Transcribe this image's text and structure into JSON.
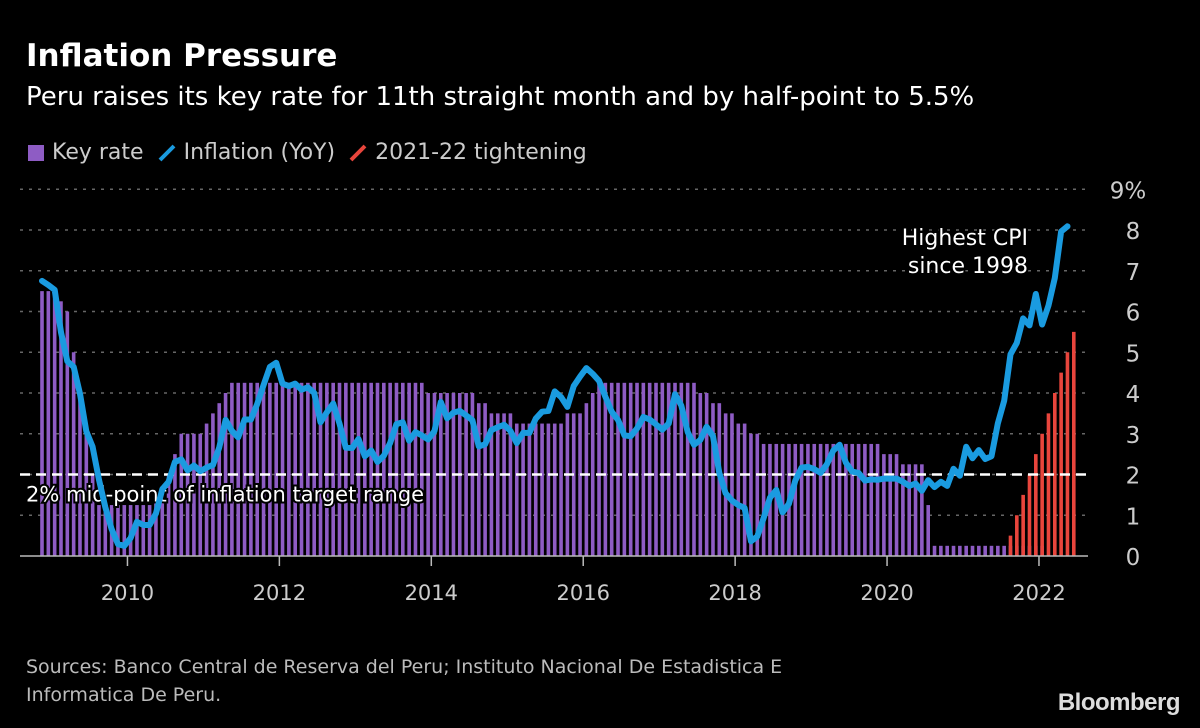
{
  "header": {
    "title": "Inflation Pressure",
    "subtitle": "Peru raises its key rate for 11th straight month and by half-point to 5.5%"
  },
  "footer": {
    "sources_line1": "Sources: Banco Central de Reserva del Peru; Instituto Nacional De Estadistica E",
    "sources_line2": "Informatica De Peru.",
    "logo": "Bloomberg"
  },
  "colors": {
    "key_rate": "#8e5cc4",
    "inflation": "#1a9be0",
    "tightening": "#e8453c",
    "background": "#000000"
  },
  "chart_data": {
    "type": "bar+line",
    "title": "Inflation Pressure",
    "legend": {
      "placement": "top-left",
      "entries": [
        "Key rate",
        "Inflation (YoY)",
        "2021-22 tightening"
      ]
    },
    "x_start": "2008-11",
    "x_frequency": "monthly",
    "x_ticks": [
      "2010",
      "2012",
      "2014",
      "2016",
      "2018",
      "2020",
      "2022"
    ],
    "y_ticks": [
      "0",
      "1",
      "2",
      "3",
      "4",
      "5",
      "6",
      "7",
      "8",
      "9%"
    ],
    "ylim": [
      0,
      9
    ],
    "grid": true,
    "annotations": {
      "target_line_value": 2,
      "target_label": "2% mid-point of inflation target range",
      "cpi_label_1": "Highest CPI",
      "cpi_label_2": "since 1998"
    },
    "series": [
      {
        "name": "Key rate",
        "type": "bar",
        "values": [
          6.5,
          6.5,
          6.5,
          6.25,
          6.0,
          5.0,
          4.0,
          3.0,
          2.0,
          1.25,
          1.25,
          1.25,
          1.25,
          1.25,
          1.25,
          1.25,
          1.25,
          1.25,
          1.5,
          1.75,
          2.0,
          2.5,
          3.0,
          3.0,
          3.0,
          3.0,
          3.25,
          3.5,
          3.75,
          4.0,
          4.25,
          4.25,
          4.25,
          4.25,
          4.25,
          4.25,
          4.25,
          4.25,
          4.25,
          4.25,
          4.25,
          4.25,
          4.25,
          4.25,
          4.25,
          4.25,
          4.25,
          4.25,
          4.25,
          4.25,
          4.25,
          4.25,
          4.25,
          4.25,
          4.25,
          4.25,
          4.25,
          4.25,
          4.25,
          4.25,
          4.25,
          4.0,
          4.0,
          4.0,
          4.0,
          4.0,
          4.0,
          4.0,
          4.0,
          3.75,
          3.75,
          3.5,
          3.5,
          3.5,
          3.5,
          3.25,
          3.25,
          3.25,
          3.25,
          3.25,
          3.25,
          3.25,
          3.25,
          3.5,
          3.5,
          3.5,
          3.75,
          4.0,
          4.25,
          4.25,
          4.25,
          4.25,
          4.25,
          4.25,
          4.25,
          4.25,
          4.25,
          4.25,
          4.25,
          4.25,
          4.25,
          4.25,
          4.25,
          4.25,
          4.0,
          4.0,
          3.75,
          3.75,
          3.5,
          3.5,
          3.25,
          3.25,
          3.0,
          3.0,
          2.75,
          2.75,
          2.75,
          2.75,
          2.75,
          2.75,
          2.75,
          2.75,
          2.75,
          2.75,
          2.75,
          2.75,
          2.75,
          2.75,
          2.75,
          2.75,
          2.75,
          2.75,
          2.75,
          2.5,
          2.5,
          2.5,
          2.25,
          2.25,
          2.25,
          2.25,
          1.25,
          0.25,
          0.25,
          0.25,
          0.25,
          0.25,
          0.25,
          0.25,
          0.25,
          0.25,
          0.25,
          0.25,
          0.25,
          0.25,
          0.25,
          0.25,
          0.25,
          0.25,
          0.25
        ]
      },
      {
        "name": "2021-22 tightening",
        "type": "bar",
        "x_start": "2021-08",
        "values": [
          0.5,
          1.0,
          1.5,
          2.0,
          2.5,
          3.0,
          3.5,
          4.0,
          4.5,
          5.0,
          5.5
        ]
      },
      {
        "name": "Inflation (YoY)",
        "type": "line",
        "values": [
          6.75,
          6.65,
          6.53,
          5.49,
          4.78,
          4.64,
          3.98,
          3.06,
          2.68,
          1.87,
          1.2,
          0.66,
          0.29,
          0.25,
          0.44,
          0.84,
          0.76,
          0.76,
          1.04,
          1.64,
          1.82,
          2.31,
          2.37,
          2.1,
          2.22,
          2.08,
          2.17,
          2.23,
          2.66,
          3.34,
          3.07,
          2.91,
          3.35,
          3.35,
          3.73,
          4.2,
          4.64,
          4.74,
          4.23,
          4.17,
          4.23,
          4.08,
          4.14,
          4.0,
          3.28,
          3.53,
          3.74,
          3.25,
          2.66,
          2.65,
          2.87,
          2.45,
          2.59,
          2.31,
          2.46,
          2.77,
          3.24,
          3.28,
          2.83,
          3.04,
          2.96,
          2.86,
          3.07,
          3.78,
          3.38,
          3.52,
          3.56,
          3.45,
          3.33,
          2.69,
          2.74,
          3.09,
          3.16,
          3.22,
          3.07,
          2.77,
          3.02,
          3.02,
          3.37,
          3.54,
          3.56,
          4.04,
          3.9,
          3.66,
          4.17,
          4.4,
          4.61,
          4.47,
          4.3,
          3.91,
          3.54,
          3.34,
          2.96,
          2.94,
          3.13,
          3.41,
          3.35,
          3.23,
          3.1,
          3.25,
          3.97,
          3.69,
          3.04,
          2.73,
          2.85,
          3.17,
          2.94,
          2.04,
          1.54,
          1.36,
          1.25,
          1.18,
          0.36,
          0.48,
          0.93,
          1.43,
          1.62,
          1.07,
          1.28,
          1.85,
          2.17,
          2.19,
          2.13,
          2.04,
          2.25,
          2.59,
          2.73,
          2.29,
          2.07,
          2.04,
          1.85,
          1.88,
          1.87,
          1.9,
          1.9,
          1.9,
          1.82,
          1.72,
          1.78,
          1.6,
          1.86,
          1.69,
          1.82,
          1.72,
          2.14,
          1.97,
          2.68,
          2.4,
          2.6,
          2.38,
          2.45,
          3.25,
          3.81,
          4.95,
          5.23,
          5.83,
          5.66,
          6.43,
          5.68,
          6.15,
          6.82,
          7.96,
          8.09
        ]
      }
    ]
  }
}
